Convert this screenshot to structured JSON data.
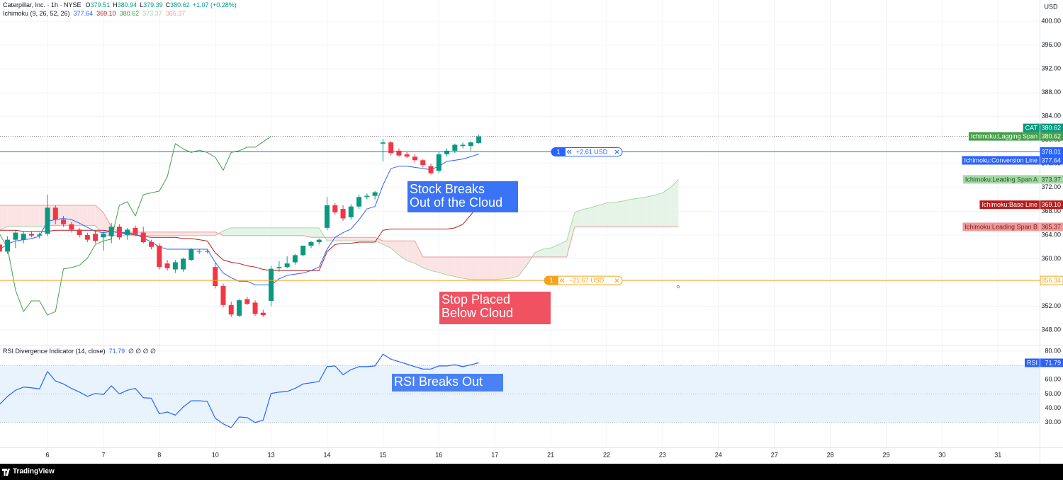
{
  "header": {
    "symbol": "Caterpillar, Inc. · 1h · NYSE",
    "ohlc_letters": [
      "O",
      "H",
      "L",
      "C"
    ],
    "change": "+1.07 (+0.28%)",
    "currency": "USD",
    "ticker": "CAT",
    "brand": "TradingView"
  },
  "chart_data": [
    {
      "type": "candlestick",
      "ylim": [
        345.5,
        403.6
      ],
      "yticks": [
        {
          "value": 400,
          "label": "400.00"
        },
        {
          "value": 396,
          "label": "396.00"
        },
        {
          "value": 392,
          "label": "392.00"
        },
        {
          "value": 388,
          "label": "388.00"
        },
        {
          "value": 384,
          "label": "384.00"
        },
        {
          "value": 380,
          "label": "380.00"
        },
        {
          "value": 376,
          "label": "376.00"
        },
        {
          "value": 372,
          "label": "372.00"
        },
        {
          "value": 368,
          "label": "368.00"
        },
        {
          "value": 364,
          "label": "364.00"
        },
        {
          "value": 360,
          "label": "360.00"
        },
        {
          "value": 356,
          "label": "356.00"
        },
        {
          "value": 352,
          "label": "352.00"
        },
        {
          "value": 348,
          "label": "348.00"
        }
      ],
      "grid": true,
      "x_labels": [
        "6",
        "7",
        "8",
        "10",
        "13",
        "14",
        "15",
        "16",
        "17",
        "21",
        "22",
        "23",
        "24",
        "27",
        "28",
        "29",
        "30",
        "31"
      ],
      "up_color": "#089981",
      "down_color": "#f23645",
      "candles": {
        "open": [
          362.4,
          361.2,
          363.2,
          363.2,
          364.2,
          363.9,
          364.2,
          368.6,
          366.6,
          365.8,
          364.9,
          364.0,
          364.2,
          363.6,
          363.8,
          365.4,
          364.0,
          365.2,
          364.4,
          362.8,
          362.2,
          359.2,
          358.2,
          358.2,
          359.8,
          361.2,
          361.3,
          358.6,
          355.4,
          352.2,
          350.4,
          353.2,
          352.6,
          350.9,
          352.9,
          358.4,
          358.6,
          359.4,
          360.6,
          362.2,
          362.8,
          365.2,
          369.0,
          368.4,
          367.0,
          368.8,
          370.4,
          370.6,
          379.4,
          379.6,
          378.2,
          377.6,
          377.2,
          376.6,
          375.6,
          374.8,
          377.6,
          378.2,
          379.0,
          379.0,
          379.51
        ],
        "high": [
          363.2,
          363.8,
          364.8,
          364.6,
          364.6,
          364.4,
          370.8,
          369.0,
          367.2,
          366.2,
          365.2,
          364.4,
          364.8,
          364.6,
          366.0,
          365.8,
          365.2,
          365.6,
          365.4,
          363.2,
          362.6,
          359.8,
          359.8,
          360.2,
          361.8,
          361.6,
          361.6,
          359.4,
          355.8,
          352.8,
          353.2,
          353.6,
          353.0,
          351.4,
          358.8,
          359.6,
          360.4,
          360.8,
          362.2,
          363.0,
          363.4,
          370.4,
          369.4,
          369.0,
          369.2,
          370.8,
          371.0,
          371.4,
          380.2,
          379.8,
          378.6,
          378.0,
          377.6,
          376.8,
          376.0,
          378.0,
          378.6,
          379.4,
          379.6,
          379.8,
          380.94
        ],
        "low": [
          360.6,
          360.8,
          361.8,
          362.6,
          363.6,
          363.4,
          363.8,
          365.8,
          365.4,
          364.4,
          363.6,
          362.8,
          362.6,
          361.4,
          362.6,
          363.2,
          363.2,
          363.8,
          362.6,
          361.6,
          358.2,
          358.0,
          357.6,
          357.8,
          359.6,
          360.8,
          360.9,
          355.0,
          351.8,
          350.2,
          350.2,
          352.2,
          350.4,
          350.2,
          352.0,
          357.8,
          358.4,
          359.0,
          360.4,
          361.8,
          362.4,
          364.8,
          367.4,
          366.4,
          366.6,
          368.4,
          370.0,
          370.0,
          376.4,
          377.4,
          377.2,
          377.0,
          376.2,
          375.4,
          374.2,
          374.4,
          377.2,
          377.8,
          378.6,
          378.2,
          379.39
        ],
        "close": [
          361.2,
          363.2,
          364.4,
          364.2,
          363.9,
          364.1,
          368.6,
          366.6,
          365.8,
          364.9,
          364.0,
          363.2,
          363.0,
          364.2,
          365.4,
          363.6,
          364.9,
          364.2,
          362.8,
          362.0,
          358.6,
          358.4,
          359.4,
          360.0,
          361.6,
          361.3,
          361.2,
          355.4,
          352.2,
          350.6,
          353.0,
          352.4,
          350.7,
          350.5,
          358.3,
          358.6,
          359.2,
          360.6,
          362.2,
          362.8,
          363.2,
          369.0,
          367.8,
          366.8,
          368.8,
          370.4,
          370.6,
          371.2,
          379.6,
          377.8,
          377.4,
          377.2,
          376.6,
          375.8,
          374.4,
          377.6,
          378.2,
          379.2,
          379.2,
          379.6,
          380.62
        ]
      },
      "indicator": {
        "name": "Ichimoku (9, 26, 52, 26)",
        "cloud_up_color": "#e6f4e7",
        "cloud_down_color": "#fbe3e3",
        "series": [
          {
            "name": "Ichimoku:Conversion Line",
            "color": "#2962ff",
            "label_text_color": "#ffffff",
            "last_label": "377.64",
            "values": [
              361.5,
              362.5,
              363.0,
              363.2,
              363.4,
              363.8,
              366.3,
              366.6,
              366.8,
              366.6,
              366.0,
              365.3,
              364.6,
              364.4,
              364.6,
              364.4,
              364.4,
              364.2,
              363.5,
              362.8,
              362.0,
              361.6,
              361.6,
              361.6,
              361.6,
              361.6,
              361.6,
              359.4,
              357.6,
              356.8,
              356.2,
              356.2,
              355.6,
              355.6,
              355.6,
              356.6,
              357.2,
              357.4,
              357.6,
              358.0,
              358.6,
              361.6,
              363.6,
              364.4,
              365.0,
              366.6,
              368.4,
              368.8,
              372.4,
              375.2,
              375.6,
              375.6,
              375.4,
              375.2,
              375.0,
              375.6,
              376.4,
              376.6,
              376.8,
              377.2,
              377.64
            ]
          },
          {
            "name": "Ichimoku:Base Line",
            "color": "#b71c1c",
            "label_text_color": "#ffffff",
            "last_label": "369.10",
            "values": [
              364.8,
              364.8,
              364.8,
              364.6,
              364.6,
              364.6,
              364.6,
              364.8,
              364.8,
              364.8,
              364.8,
              364.8,
              364.8,
              364.8,
              364.6,
              364.4,
              364.2,
              364.0,
              363.8,
              363.6,
              363.6,
              363.6,
              363.6,
              363.4,
              363.4,
              363.2,
              363.0,
              361.0,
              359.8,
              359.4,
              359.2,
              358.8,
              358.6,
              358.2,
              358.0,
              358.0,
              358.0,
              358.0,
              358.0,
              358.0,
              358.0,
              361.2,
              362.4,
              362.6,
              362.6,
              362.8,
              362.8,
              362.8,
              364.8,
              365.0,
              365.0,
              365.0,
              365.0,
              365.0,
              365.0,
              365.0,
              365.0,
              365.2,
              365.8,
              367.4,
              369.1
            ]
          },
          {
            "name": "Ichimoku:Lagging Span",
            "color": "#43a047",
            "label_text_color": "#ffffff",
            "last_label": "380.62",
            "values": [
              364.2,
              361.8,
              354.7,
              351.1,
              352.9,
              352.9,
              350.5,
              351.1,
              358.3,
              358.5,
              358.9,
              360.1,
              362.4,
              363.0,
              363.3,
              369.0,
              369.6,
              367.2,
              370.8,
              371.1,
              371.4,
              373.8,
              379.4,
              378.5,
              377.9,
              378.3,
              377.9,
              377.1,
              374.9,
              377.9,
              378.2,
              378.8,
              378.8,
              379.7,
              380.62
            ]
          },
          {
            "name": "Ichimoku:Leading Span A",
            "color": "#a5d6a7",
            "label_text_color": "#1b5e20",
            "last_label": "373.37",
            "values": [
              364.8,
              365.4,
              365.4,
              365.4,
              365.4,
              365.4,
              365.6,
              365.6,
              365.6,
              365.6,
              365.6,
              365.6,
              365.6,
              363.9,
              363.9,
              363.9,
              363.9,
              363.9,
              363.9,
              363.9,
              363.9,
              363.9,
              363.9,
              363.9,
              363.9,
              363.9,
              363.9,
              363.9,
              364.7,
              365.2,
              365.2,
              365.2,
              365.2,
              365.2,
              365.2,
              365.2,
              365.2,
              365.2,
              365.2,
              365.2,
              365.2,
              363.0,
              363.0,
              363.0,
              363.0,
              363.0,
              363.0,
              363.0,
              362.4,
              361.8,
              360.6,
              359.7,
              359.2,
              358.5,
              358.0,
              357.7,
              357.3,
              357.0,
              356.7,
              356.5,
              356.5,
              356.5,
              356.5,
              356.6,
              356.7,
              357.1,
              358.9,
              361.0,
              361.6,
              361.8,
              362.4,
              363.0,
              367.8,
              368.3,
              368.6,
              369.0,
              369.4,
              369.5,
              369.7,
              370.0,
              370.2,
              370.4,
              370.7,
              371.1,
              372.0,
              373.37
            ]
          },
          {
            "name": "Ichimoku:Leading Span B",
            "color": "#ef9a9a",
            "label_text_color": "#7f1d1d",
            "last_label": "365.37",
            "values": [
              369.0,
              369.0,
              369.0,
              369.0,
              369.0,
              369.0,
              369.0,
              369.0,
              369.0,
              369.0,
              369.0,
              369.0,
              369.0,
              367.8,
              365.4,
              364.5,
              364.5,
              364.5,
              364.5,
              364.5,
              364.5,
              364.5,
              364.5,
              364.5,
              364.5,
              364.5,
              364.5,
              364.5,
              363.9,
              363.9,
              363.9,
              363.9,
              363.9,
              363.9,
              363.9,
              363.9,
              363.9,
              363.9,
              363.9,
              363.6,
              363.6,
              363.6,
              363.6,
              363.6,
              363.6,
              363.6,
              363.6,
              363.6,
              363.0,
              363.0,
              363.0,
              363.0,
              363.0,
              360.3,
              360.3,
              360.3,
              360.3,
              360.3,
              360.3,
              360.3,
              360.3,
              360.3,
              360.3,
              360.3,
              360.3,
              360.3,
              360.3,
              360.3,
              360.3,
              360.3,
              360.3,
              360.3,
              365.4,
              365.4,
              365.4,
              365.4,
              365.4,
              365.4,
              365.4,
              365.4,
              365.4,
              365.4,
              365.4,
              365.4,
              365.4,
              365.37
            ]
          }
        ]
      },
      "hlines": [
        {
          "value": 378.01,
          "color": "#2962ff",
          "qty": 1,
          "pnl": "+2.61 USD"
        },
        {
          "value": 356.34,
          "color": "#f7a21b",
          "qty": 1,
          "pnl": "−21.67 USD"
        }
      ],
      "annotations": [
        {
          "lines": [
            "Stock Breaks",
            "Out of the Cloud"
          ],
          "color": "#3a73f5"
        },
        {
          "lines": [
            "Stop Placed",
            "Below Cloud"
          ],
          "color": "#f05262"
        }
      ]
    },
    {
      "type": "line",
      "title": "RSI Divergence Indicator (14, close)",
      "extra": "∅ ∅ ∅ ∅",
      "ylim": [
        12.6,
        83.9
      ],
      "yticks": [
        {
          "value": 80,
          "label": "80.00"
        },
        {
          "value": 60,
          "label": "60.00"
        },
        {
          "value": 50,
          "label": "50.00"
        },
        {
          "value": 40,
          "label": "40.00"
        },
        {
          "value": 30,
          "label": "30.00"
        }
      ],
      "bands": {
        "upper": 70,
        "middle": 50,
        "lower": 30,
        "fill": "#e8f3fd",
        "color": "#b2b5be"
      },
      "series": [
        {
          "name": "RSI",
          "color": "#2962ff",
          "values": [
            42.6,
            48.3,
            52.6,
            54.8,
            54.3,
            53.5,
            65.7,
            59.1,
            57.0,
            53.9,
            51.3,
            48.3,
            50.4,
            49.6,
            55.7,
            50.0,
            52.6,
            53.9,
            47.4,
            47.0,
            36.1,
            37.4,
            35.2,
            40.9,
            45.2,
            45.2,
            44.8,
            33.0,
            29.1,
            26.5,
            33.9,
            33.5,
            30.0,
            31.7,
            50.4,
            51.3,
            51.7,
            53.9,
            57.0,
            57.8,
            58.7,
            69.1,
            69.6,
            63.5,
            67.0,
            69.1,
            69.1,
            69.6,
            77.8,
            74.3,
            72.6,
            70.9,
            69.1,
            67.4,
            67.4,
            69.6,
            69.6,
            70.4,
            69.1,
            70.4,
            71.79
          ]
        }
      ],
      "annotations": [
        {
          "lines": [
            "RSI Breaks Out"
          ],
          "color": "#4a82f6"
        }
      ]
    }
  ]
}
